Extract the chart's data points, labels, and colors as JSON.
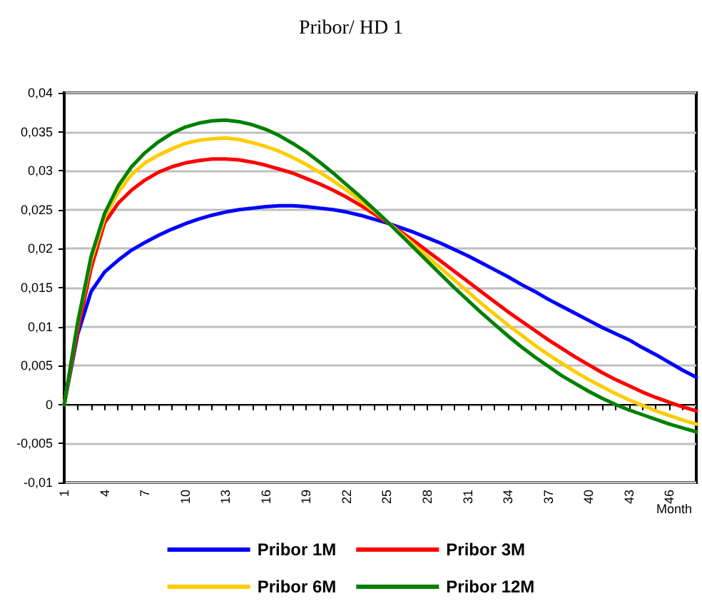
{
  "chart_data": {
    "type": "line",
    "title": "Pribor/ HD 1",
    "xlabel": "Month",
    "categories": [
      "1",
      null,
      null,
      "4",
      null,
      null,
      "7",
      null,
      null,
      "10",
      null,
      null,
      "13",
      null,
      null,
      "16",
      null,
      null,
      "19",
      null,
      null,
      "22",
      null,
      null,
      "25",
      null,
      null,
      "28",
      null,
      null,
      "31",
      null,
      null,
      "34",
      null,
      null,
      "37",
      null,
      null,
      "40",
      null,
      null,
      "43",
      null,
      null,
      "46",
      null,
      null
    ],
    "series": [
      {
        "name": "Pribor 1M",
        "color": "#0000ff",
        "values": [
          0,
          0.009,
          0.0145,
          0.017,
          0.0185,
          0.0198,
          0.0208,
          0.0217,
          0.0225,
          0.0232,
          0.0238,
          0.0243,
          0.0247,
          0.025,
          0.0252,
          0.0254,
          0.0255,
          0.0255,
          0.0254,
          0.0252,
          0.025,
          0.0247,
          0.0243,
          0.0238,
          0.0233,
          0.0227,
          0.0221,
          0.0214,
          0.0207,
          0.0199,
          0.0191,
          0.0182,
          0.0173,
          0.0164,
          0.0154,
          0.0145,
          0.0135,
          0.0126,
          0.0117,
          0.0108,
          0.0099,
          0.0091,
          0.0083,
          0.0073,
          0.0064,
          0.0054,
          0.0044,
          0.0035
        ]
      },
      {
        "name": "Pribor 3M",
        "color": "#ff0000",
        "values": [
          0,
          0.0095,
          0.0175,
          0.0233,
          0.0258,
          0.0275,
          0.0288,
          0.0298,
          0.0305,
          0.031,
          0.0313,
          0.0315,
          0.0315,
          0.0314,
          0.0311,
          0.0307,
          0.0302,
          0.0297,
          0.029,
          0.0283,
          0.0275,
          0.0266,
          0.0256,
          0.0245,
          0.0234,
          0.0222,
          0.021,
          0.0197,
          0.0184,
          0.0171,
          0.0158,
          0.0145,
          0.0132,
          0.0119,
          0.0107,
          0.0095,
          0.0083,
          0.0072,
          0.0061,
          0.0051,
          0.0041,
          0.0032,
          0.0024,
          0.0016,
          0.0009,
          0.0003,
          -0.0003,
          -0.0008
        ]
      },
      {
        "name": "Pribor 6M",
        "color": "#ffcc00",
        "values": [
          0,
          0.0105,
          0.0185,
          0.024,
          0.0272,
          0.0295,
          0.031,
          0.032,
          0.0328,
          0.0335,
          0.0339,
          0.0341,
          0.0342,
          0.034,
          0.0336,
          0.0331,
          0.0325,
          0.0317,
          0.0308,
          0.0298,
          0.0287,
          0.0275,
          0.0262,
          0.0249,
          0.0235,
          0.022,
          0.0205,
          0.019,
          0.0175,
          0.016,
          0.0145,
          0.013,
          0.0116,
          0.0102,
          0.0089,
          0.0076,
          0.0064,
          0.0053,
          0.0042,
          0.0032,
          0.0023,
          0.0014,
          0.0006,
          -0.0001,
          -0.0008,
          -0.0014,
          -0.002,
          -0.0025
        ]
      },
      {
        "name": "Pribor 12M",
        "color": "#008000",
        "values": [
          0,
          0.0105,
          0.019,
          0.0245,
          0.028,
          0.0305,
          0.0323,
          0.0337,
          0.0348,
          0.0356,
          0.0361,
          0.0364,
          0.0365,
          0.0363,
          0.0359,
          0.0353,
          0.0345,
          0.0335,
          0.0324,
          0.0311,
          0.0297,
          0.0282,
          0.0267,
          0.0251,
          0.0235,
          0.0218,
          0.0201,
          0.0184,
          0.0167,
          0.015,
          0.0134,
          0.0118,
          0.0103,
          0.0088,
          0.0074,
          0.0061,
          0.0049,
          0.0037,
          0.0027,
          0.0017,
          0.0008,
          0,
          -0.0007,
          -0.0013,
          -0.0019,
          -0.0025,
          -0.003,
          -0.0035
        ]
      }
    ],
    "ylim": [
      -0.01,
      0.04
    ],
    "yticks": [
      {
        "value": -0.01,
        "label": "-0,01"
      },
      {
        "value": -0.005,
        "label": "-0,005"
      },
      {
        "value": 0,
        "label": "0"
      },
      {
        "value": 0.005,
        "label": "0,005"
      },
      {
        "value": 0.01,
        "label": "0,01"
      },
      {
        "value": 0.015,
        "label": "0,015"
      },
      {
        "value": 0.02,
        "label": "0,02"
      },
      {
        "value": 0.025,
        "label": "0,025"
      },
      {
        "value": 0.03,
        "label": "0,03"
      },
      {
        "value": 0.035,
        "label": "0,035"
      },
      {
        "value": 0.04,
        "label": "0,04"
      }
    ],
    "grid": "y",
    "legend": "bottom",
    "marker": "none",
    "line_style": "solid"
  }
}
